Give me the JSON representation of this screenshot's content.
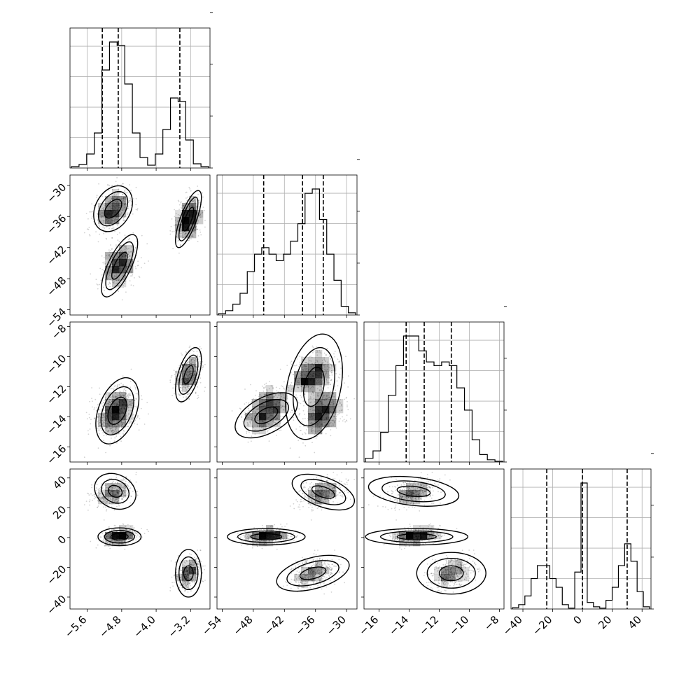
{
  "chart_data": {
    "type": "corner",
    "parameters": [
      {
        "range": [
          -6.0,
          -2.75
        ],
        "ticks": [
          -5.6,
          -4.8,
          -4.0,
          -3.2
        ],
        "tick_labels": [
          "−5.6",
          "−4.8",
          "−4.0",
          "−3.2"
        ],
        "quantiles": [
          -5.25,
          -4.88,
          -3.45
        ]
      },
      {
        "range": [
          -55.0,
          -28.0
        ],
        "ticks": [
          -54,
          -48,
          -42,
          -36,
          -30
        ],
        "tick_labels": [
          "−54",
          "−48",
          "−42",
          "−36",
          "−30"
        ],
        "quantiles": [
          -46.0,
          -38.5,
          -34.5
        ]
      },
      {
        "range": [
          -17.0,
          -7.7
        ],
        "ticks": [
          -16,
          -14,
          -12,
          -10,
          -8
        ],
        "tick_labels": [
          "−16",
          "−14",
          "−12",
          "−10",
          "−8"
        ],
        "quantiles": [
          -14.2,
          -13.0,
          -11.2
        ]
      },
      {
        "range": [
          -48.0,
          46.0
        ],
        "ticks": [
          -40,
          -20,
          0,
          20,
          40
        ],
        "tick_labels": [
          "−40",
          "−20",
          "0",
          "20",
          "40"
        ],
        "quantiles": [
          -24.0,
          0.0,
          30.0
        ]
      }
    ],
    "histograms": [
      {
        "edges_range": [
          -6.0,
          -2.75
        ],
        "counts": [
          0.2,
          0.5,
          2,
          5,
          14,
          18,
          17.5,
          12,
          5,
          1.5,
          0.4,
          2,
          5.5,
          10,
          9.5,
          4,
          0.6,
          0.2
        ]
      },
      {
        "edges_range": [
          -55.0,
          -28.0
        ],
        "counts": [
          0.3,
          1,
          2.5,
          5,
          10,
          14,
          15.5,
          14,
          12.5,
          14,
          17,
          21,
          28,
          29,
          22,
          14,
          8,
          2,
          0.5
        ]
      },
      {
        "edges_range": [
          -17.0,
          -7.7
        ],
        "counts": [
          0.5,
          1.5,
          4,
          9,
          13,
          17,
          17,
          15,
          13.5,
          13,
          13.5,
          13,
          10,
          7,
          3,
          1,
          0.3,
          0.1
        ]
      },
      {
        "edges_range": [
          -48.0,
          46.0
        ],
        "counts": [
          0.3,
          1,
          3,
          7,
          10,
          10,
          7,
          5,
          1,
          0.2,
          8.5,
          29,
          1.5,
          0.5,
          0.2,
          2,
          5,
          10,
          15,
          11,
          4,
          0.5
        ]
      }
    ],
    "clusters": [
      {
        "means": [
          -5.0,
          -34.5,
          -13.7,
          30.0
        ],
        "sd": [
          0.22,
          2.2,
          0.8,
          5.0
        ]
      },
      {
        "means": [
          -4.85,
          -45.5,
          -13.5,
          1.0
        ],
        "sd": [
          0.2,
          2.3,
          0.85,
          2.8
        ]
      },
      {
        "means": [
          -3.25,
          -36.5,
          -11.2,
          -24.0
        ],
        "sd": [
          0.16,
          2.3,
          0.75,
          5.5
        ]
      }
    ],
    "pairs": [
      {
        "row": 1,
        "col": 0,
        "contours": [
          {
            "cx": -5.0,
            "cy": -34.5,
            "levels": [
              [
                0.45,
                4.4,
                0.28
              ],
              [
                0.34,
                3.3,
                0.4
              ],
              [
                0.2,
                1.8,
                0.5
              ]
            ]
          },
          {
            "cx": -4.85,
            "cy": -45.5,
            "levels": [
              [
                0.42,
                6.0,
                0.72
              ],
              [
                0.32,
                4.6,
                0.72
              ],
              [
                0.18,
                2.6,
                0.72
              ]
            ]
          },
          {
            "cx": -3.25,
            "cy": -36.5,
            "levels": [
              [
                0.3,
                5.5,
                0.75
              ],
              [
                0.22,
                4.2,
                0.75
              ],
              [
                0.12,
                2.3,
                0.75
              ]
            ]
          }
        ]
      },
      {
        "row": 2,
        "col": 0,
        "contours": [
          {
            "cx": -4.9,
            "cy": -13.6,
            "levels": [
              [
                0.5,
                2.2,
                0.4
              ],
              [
                0.38,
                1.6,
                0.4
              ],
              [
                0.22,
                0.9,
                0.4
              ]
            ]
          },
          {
            "cx": -3.25,
            "cy": -11.2,
            "levels": [
              [
                0.3,
                1.8,
                0.55
              ],
              [
                0.22,
                1.3,
                0.55
              ],
              [
                0.11,
                0.6,
                0.55
              ]
            ]
          }
        ]
      },
      {
        "row": 2,
        "col": 1,
        "contours": [
          {
            "cx": -45.5,
            "cy": -13.9,
            "levels": [
              [
                6.0,
                1.5,
                0.5
              ],
              [
                4.3,
                1.05,
                0.5
              ],
              [
                2.2,
                0.55,
                0.5
              ]
            ]
          },
          {
            "cx": -36.3,
            "cy": -12.0,
            "levels": [
              [
                5.5,
                3.5,
                0.3
              ],
              [
                4.0,
                2.6,
                0.3
              ],
              [
                2.0,
                1.3,
                0.3
              ]
            ]
          }
        ]
      },
      {
        "row": 3,
        "col": 0,
        "contours": [
          {
            "cx": -4.95,
            "cy": 31.0,
            "levels": [
              [
                0.48,
                12.0,
                -0.2
              ],
              [
                0.32,
                8.0,
                -0.2
              ],
              [
                0.16,
                4.0,
                -0.2
              ]
            ]
          },
          {
            "cx": -4.85,
            "cy": 0.5,
            "levels": [
              [
                0.5,
                6.0,
                0.0
              ],
              [
                0.35,
                4.2,
                0.0
              ],
              [
                0.2,
                2.2,
                0.0
              ]
            ]
          },
          {
            "cx": -3.25,
            "cy": -24.0,
            "levels": [
              [
                0.3,
                16.0,
                0.0
              ],
              [
                0.22,
                11.0,
                0.0
              ],
              [
                0.11,
                5.0,
                0.0
              ]
            ]
          }
        ]
      },
      {
        "row": 3,
        "col": 1,
        "contours": [
          {
            "cx": -34.5,
            "cy": 30.5,
            "levels": [
              [
                6.0,
                12.0,
                -0.5
              ],
              [
                4.3,
                8.5,
                -0.5
              ],
              [
                2.2,
                4.2,
                -0.5
              ]
            ]
          },
          {
            "cx": -45.5,
            "cy": 0.5,
            "levels": [
              [
                7.5,
                5.5,
                0.0
              ],
              [
                5.5,
                3.8,
                0.0
              ],
              [
                3.0,
                2.0,
                0.0
              ]
            ]
          },
          {
            "cx": -36.5,
            "cy": -24.0,
            "levels": [
              [
                7.0,
                12.0,
                0.45
              ],
              [
                5.0,
                8.5,
                0.45
              ],
              [
                2.5,
                4.2,
                0.45
              ]
            ]
          }
        ]
      },
      {
        "row": 3,
        "col": 2,
        "contours": [
          {
            "cx": -13.7,
            "cy": 31.0,
            "levels": [
              [
                3.0,
                10.0,
                -0.3
              ],
              [
                2.1,
                7.0,
                -0.3
              ],
              [
                1.1,
                3.5,
                -0.3
              ]
            ]
          },
          {
            "cx": -13.5,
            "cy": 0.5,
            "levels": [
              [
                3.4,
                5.5,
                0.0
              ],
              [
                2.4,
                3.8,
                0.0
              ],
              [
                1.3,
                2.0,
                0.0
              ]
            ]
          },
          {
            "cx": -11.2,
            "cy": -24.0,
            "levels": [
              [
                2.3,
                14.0,
                0.0
              ],
              [
                1.6,
                10.0,
                0.0
              ],
              [
                0.8,
                5.0,
                0.0
              ]
            ]
          }
        ]
      }
    ],
    "grid": true,
    "style": {
      "line_color": "#000000",
      "grid_color": "#b0b0b0",
      "density_color": "#000000",
      "background": "#ffffff"
    }
  }
}
